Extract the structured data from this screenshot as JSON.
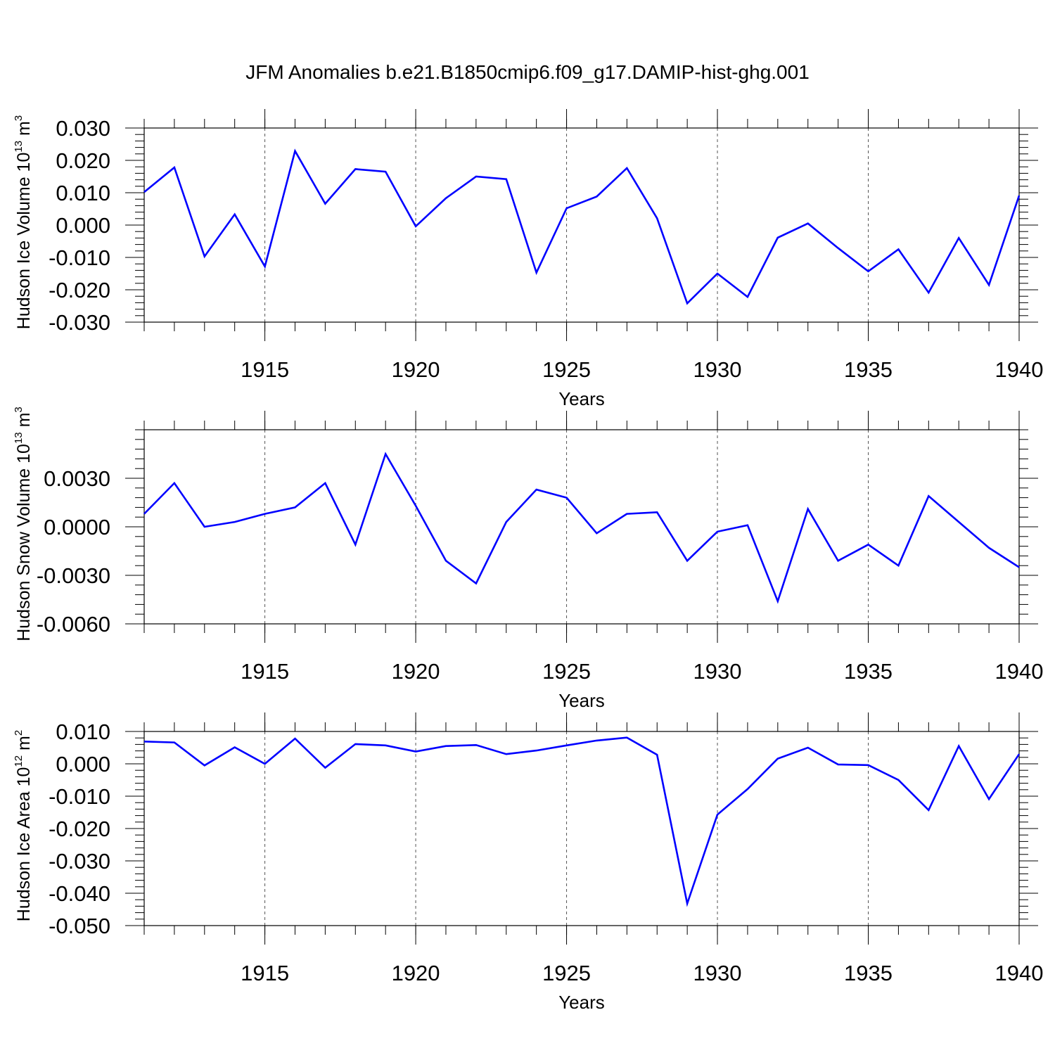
{
  "title": "JFM Anomalies b.e21.B1850cmip6.f09_g17.DAMIP-hist-ghg.001",
  "line_color": "#0000ff",
  "chart_data": [
    {
      "type": "line",
      "ylabel_text": "Hudson Ice Volume 10",
      "ylabel_exp": "13",
      "ylabel_unit": " m",
      "ylabel_unit_exp": "3",
      "xlabel": "Years",
      "xlim": [
        1911,
        1940
      ],
      "ylim": [
        -0.03,
        0.03
      ],
      "yticks": [
        -0.03,
        -0.02,
        -0.01,
        0.0,
        0.01,
        0.02,
        0.03
      ],
      "yticklabels": [
        "-0.030",
        "-0.020",
        "-0.010",
        "0.000",
        "0.010",
        "0.020",
        "0.030"
      ],
      "xticks": [
        1915,
        1920,
        1925,
        1930,
        1935,
        1940
      ],
      "xticklabels": [
        "1915",
        "1920",
        "1925",
        "1930",
        "1935",
        "1940"
      ],
      "grid": "dashed vertical at major x ticks",
      "x": [
        1911,
        1912,
        1913,
        1914,
        1915,
        1916,
        1917,
        1918,
        1919,
        1920,
        1921,
        1922,
        1923,
        1924,
        1925,
        1926,
        1927,
        1928,
        1929,
        1930,
        1931,
        1932,
        1933,
        1934,
        1935,
        1936,
        1937,
        1938,
        1939,
        1940
      ],
      "values": [
        0.0102,
        0.0178,
        -0.0097,
        0.0033,
        -0.0128,
        0.0229,
        0.0066,
        0.0173,
        0.0165,
        -0.0004,
        0.0083,
        0.015,
        0.0142,
        -0.0147,
        0.0052,
        0.0088,
        0.0176,
        0.0021,
        -0.0242,
        -0.015,
        -0.0222,
        -0.0039,
        0.0005,
        -0.0071,
        -0.0143,
        -0.0075,
        -0.0209,
        -0.004,
        -0.0185,
        0.0091
      ]
    },
    {
      "type": "line",
      "ylabel_text": "Hudson Snow Volume 10",
      "ylabel_exp": "13",
      "ylabel_unit": " m",
      "ylabel_unit_exp": "3",
      "xlabel": "Years",
      "xlim": [
        1911,
        1940
      ],
      "ylim": [
        -0.006,
        0.006
      ],
      "yticks": [
        -0.006,
        -0.003,
        0.0,
        0.003
      ],
      "yticklabels": [
        "-0.0060",
        "-0.0030",
        "0.0000",
        "0.0030"
      ],
      "xticks": [
        1915,
        1920,
        1925,
        1930,
        1935,
        1940
      ],
      "xticklabels": [
        "1915",
        "1920",
        "1925",
        "1930",
        "1935",
        "1940"
      ],
      "grid": "dashed vertical at major x ticks",
      "x": [
        1911,
        1912,
        1913,
        1914,
        1915,
        1916,
        1917,
        1918,
        1919,
        1920,
        1921,
        1922,
        1923,
        1924,
        1925,
        1926,
        1927,
        1928,
        1929,
        1930,
        1931,
        1932,
        1933,
        1934,
        1935,
        1936,
        1937,
        1938,
        1939,
        1940
      ],
      "values": [
        0.0008,
        0.0027,
        0.0,
        0.0003,
        0.0008,
        0.0012,
        0.0027,
        -0.0011,
        0.0045,
        0.0013,
        -0.0021,
        -0.0035,
        0.0003,
        0.0023,
        0.0018,
        -0.0004,
        0.0008,
        0.0009,
        -0.0021,
        -0.0003,
        0.0001,
        -0.0046,
        0.0011,
        -0.0021,
        -0.0011,
        -0.0024,
        0.0019,
        0.0003,
        -0.0013,
        -0.0025
      ]
    },
    {
      "type": "line",
      "ylabel_text": "Hudson Ice Area 10",
      "ylabel_exp": "12",
      "ylabel_unit": " m",
      "ylabel_unit_exp": "2",
      "xlabel": "Years",
      "xlim": [
        1911,
        1940
      ],
      "ylim": [
        -0.05,
        0.01
      ],
      "yticks": [
        -0.05,
        -0.04,
        -0.03,
        -0.02,
        -0.01,
        0.0,
        0.01
      ],
      "yticklabels": [
        "-0.050",
        "-0.040",
        "-0.030",
        "-0.020",
        "-0.010",
        "0.000",
        "0.010"
      ],
      "xticks": [
        1915,
        1920,
        1925,
        1930,
        1935,
        1940
      ],
      "xticklabels": [
        "1915",
        "1920",
        "1925",
        "1930",
        "1935",
        "1940"
      ],
      "grid": "dashed vertical at major x ticks",
      "x": [
        1911,
        1912,
        1913,
        1914,
        1915,
        1916,
        1917,
        1918,
        1919,
        1920,
        1921,
        1922,
        1923,
        1924,
        1925,
        1926,
        1927,
        1928,
        1929,
        1930,
        1931,
        1932,
        1933,
        1934,
        1935,
        1936,
        1937,
        1938,
        1939,
        1940
      ],
      "values": [
        0.0069,
        0.0066,
        -0.0005,
        0.0051,
        0.0,
        0.0078,
        -0.0012,
        0.0061,
        0.0057,
        0.0038,
        0.0055,
        0.0058,
        0.003,
        0.0041,
        0.0057,
        0.0072,
        0.0081,
        0.0028,
        -0.0432,
        -0.0157,
        -0.0078,
        0.0016,
        0.005,
        -0.0002,
        -0.0004,
        -0.005,
        -0.0143,
        0.0055,
        -0.0109,
        0.003
      ]
    }
  ]
}
